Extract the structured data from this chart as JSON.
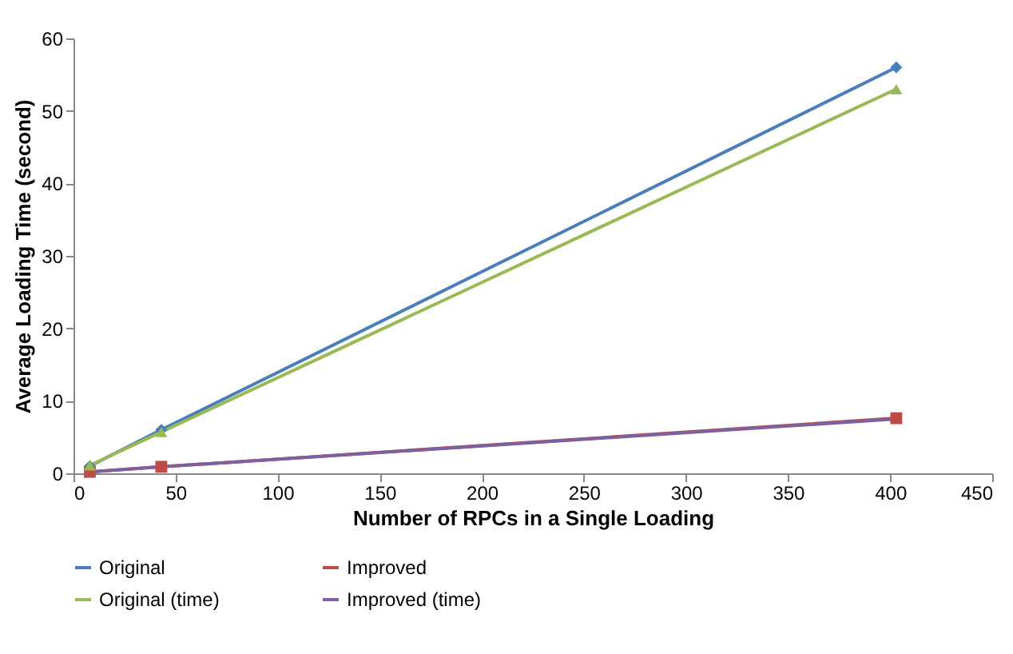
{
  "chart_data": {
    "type": "line",
    "xlabel": "Number of RPCs in a Single Loading",
    "ylabel": "Average Loading Time (second)",
    "x": [
      8,
      43,
      403
    ],
    "series": [
      {
        "name": "Original",
        "color": "#4a7ebb",
        "marker": "diamond",
        "values": [
          1,
          6,
          56
        ]
      },
      {
        "name": "Improved",
        "color": "#be4b48",
        "marker": "square",
        "values": [
          0.2,
          0.9,
          7.6
        ]
      },
      {
        "name": "Original (time)",
        "color": "#98b954",
        "marker": "triangle",
        "values": [
          1.1,
          5.7,
          53
        ]
      },
      {
        "name": "Improved (time)",
        "color": "#7d60a0",
        "marker": "none",
        "values": [
          0.2,
          0.9,
          7.5
        ]
      }
    ],
    "xlim": [
      0,
      450
    ],
    "xticks": [
      0,
      50,
      100,
      150,
      200,
      250,
      300,
      350,
      400,
      450
    ],
    "ylim": [
      0,
      60
    ],
    "yticks": [
      0,
      10,
      20,
      30,
      40,
      50,
      60
    ],
    "grid": false,
    "legend": "bottom"
  }
}
